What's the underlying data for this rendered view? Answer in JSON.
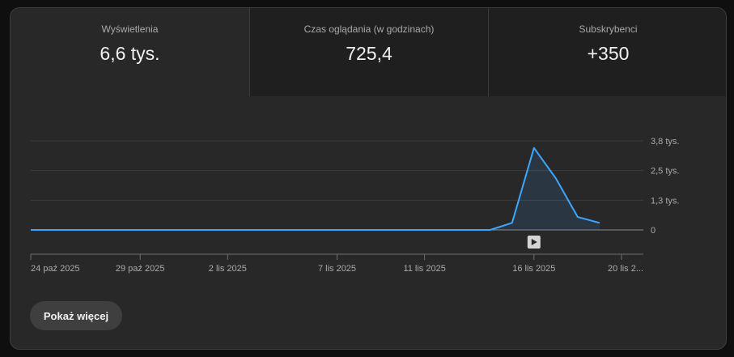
{
  "metrics": [
    {
      "label": "Wyświetlenia",
      "value": "6,6 tys."
    },
    {
      "label": "Czas oglądania (w godzinach)",
      "value": "725,4"
    },
    {
      "label": "Subskrybenci",
      "value": "+350"
    }
  ],
  "show_more_label": "Pokaż więcej",
  "colors": {
    "line": "#3ea6ff",
    "grid": "#3d3d3d",
    "axis": "#909090"
  },
  "chart_data": {
    "type": "area",
    "ylim": [
      0,
      3800
    ],
    "y_ticks": [
      {
        "value": 0,
        "label": "0"
      },
      {
        "value": 1266.7,
        "label": "1,3 tys."
      },
      {
        "value": 2533.3,
        "label": "2,5 tys."
      },
      {
        "value": 3800,
        "label": "3,8 tys."
      }
    ],
    "x_range": [
      "2025-10-24",
      "2025-11-21"
    ],
    "x_ticks": [
      {
        "date": "2025-10-24",
        "label": "24 paź 2025"
      },
      {
        "date": "2025-10-29",
        "label": "29 paź 2025"
      },
      {
        "date": "2025-11-02",
        "label": "2 lis 2025"
      },
      {
        "date": "2025-11-07",
        "label": "7 lis 2025"
      },
      {
        "date": "2025-11-11",
        "label": "11 lis 2025"
      },
      {
        "date": "2025-11-16",
        "label": "16 lis 2025"
      },
      {
        "date": "2025-11-20",
        "label": "20 lis 2..."
      }
    ],
    "points": [
      {
        "x": "2025-10-24",
        "y": 0
      },
      {
        "x": "2025-11-14",
        "y": 0
      },
      {
        "x": "2025-11-15",
        "y": 300
      },
      {
        "x": "2025-11-16",
        "y": 3500
      },
      {
        "x": "2025-11-17",
        "y": 2200
      },
      {
        "x": "2025-11-18",
        "y": 550
      },
      {
        "x": "2025-11-19",
        "y": 300
      }
    ],
    "marker_date": "2025-11-16",
    "marker_icon": "play-icon",
    "grid": true
  }
}
